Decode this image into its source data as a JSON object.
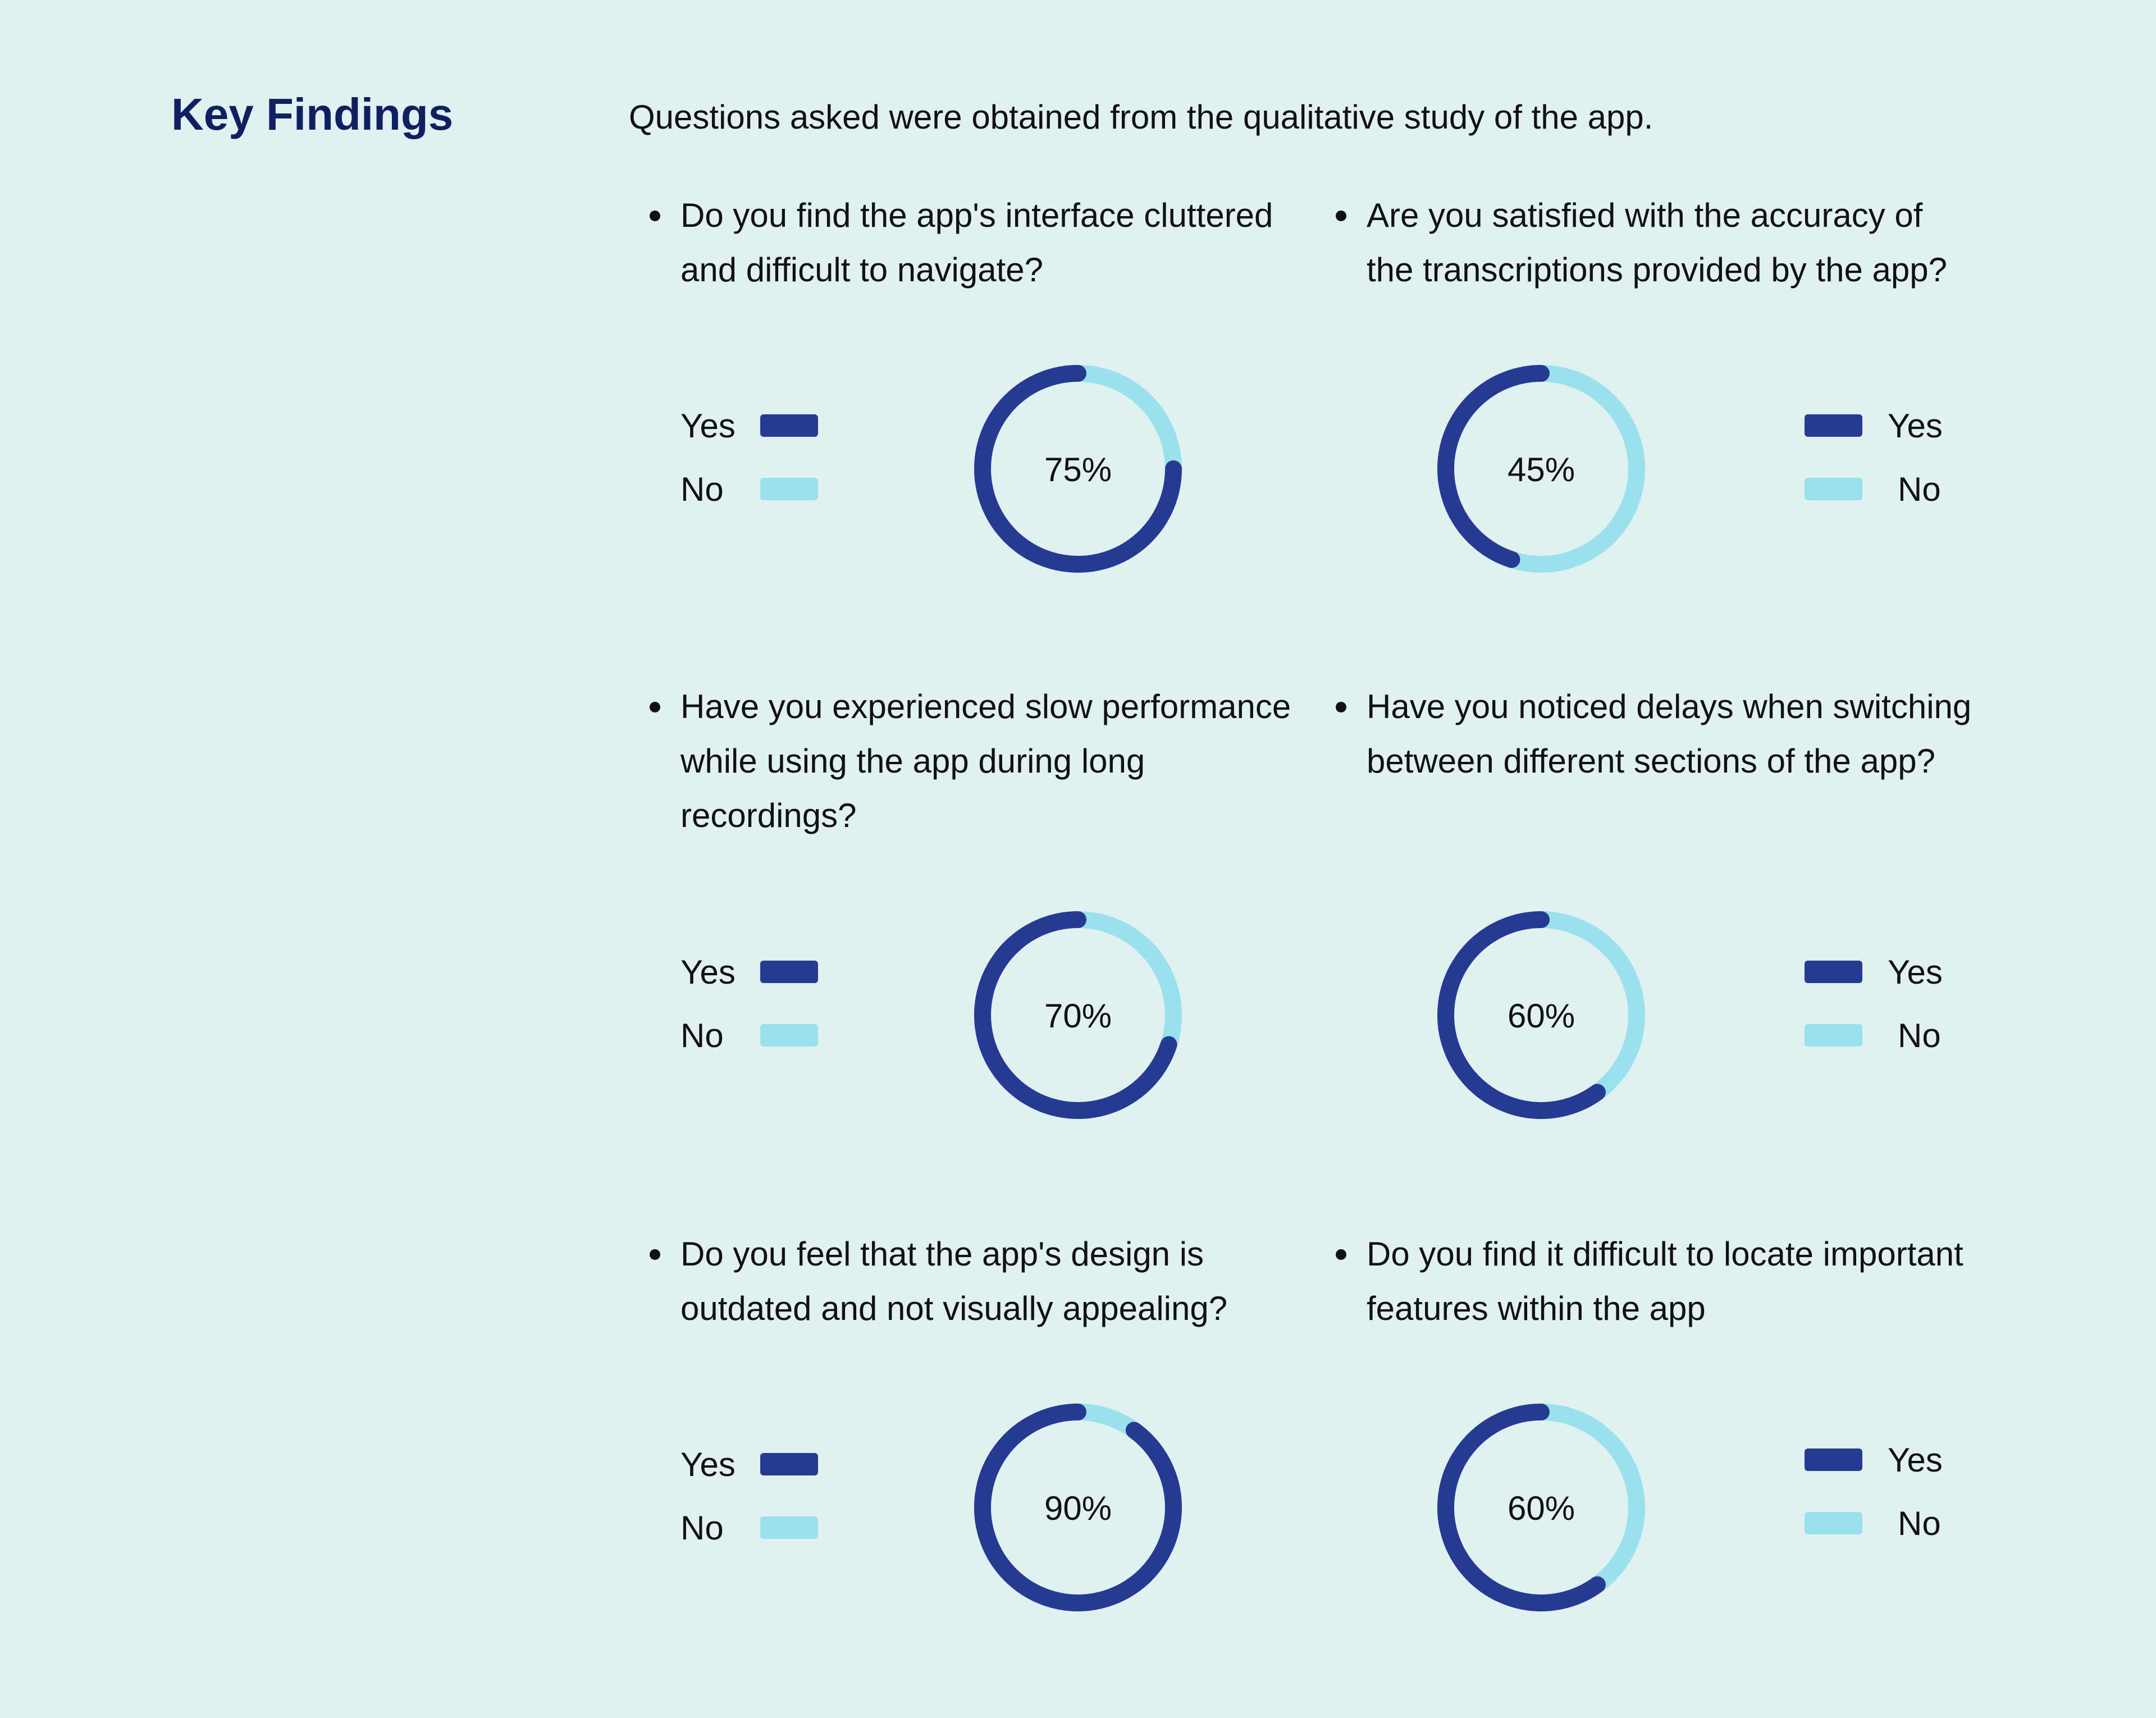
{
  "heading": "Key Findings",
  "intro": "Questions asked were obtained from the qualitative study of the app.",
  "colors": {
    "yes": "#263a94",
    "no": "#99e1ed",
    "heading": "#0f2060",
    "background": "#e1f0f1"
  },
  "legend": {
    "yes_label": "Yes",
    "no_label": "No"
  },
  "findings": [
    {
      "question": "Do you find the app's interface cluttered and difficult to navigate?",
      "percent_label": "75%"
    },
    {
      "question": "Are you satisfied with the accuracy of the transcriptions provided by the app?",
      "percent_label": "45%"
    },
    {
      "question": "Have you experienced slow performance while using the app during long recordings?",
      "percent_label": "70%"
    },
    {
      "question": "Have you noticed delays when switching between different sections of the app?",
      "percent_label": "60%"
    },
    {
      "question": "Do you feel that the app's design is outdated and not visually appealing?",
      "percent_label": "90%"
    },
    {
      "question": "Do you find it difficult to locate important features within the app",
      "percent_label": "60%"
    }
  ],
  "chart_data": [
    {
      "type": "pie",
      "categories": [
        "Yes",
        "No"
      ],
      "values": [
        75,
        25
      ]
    },
    {
      "type": "pie",
      "categories": [
        "Yes",
        "No"
      ],
      "values": [
        45,
        55
      ]
    },
    {
      "type": "pie",
      "categories": [
        "Yes",
        "No"
      ],
      "values": [
        70,
        30
      ]
    },
    {
      "type": "pie",
      "categories": [
        "Yes",
        "No"
      ],
      "values": [
        60,
        40
      ]
    },
    {
      "type": "pie",
      "categories": [
        "Yes",
        "No"
      ],
      "values": [
        90,
        10
      ]
    },
    {
      "type": "pie",
      "categories": [
        "Yes",
        "No"
      ],
      "values": [
        60,
        40
      ]
    }
  ]
}
